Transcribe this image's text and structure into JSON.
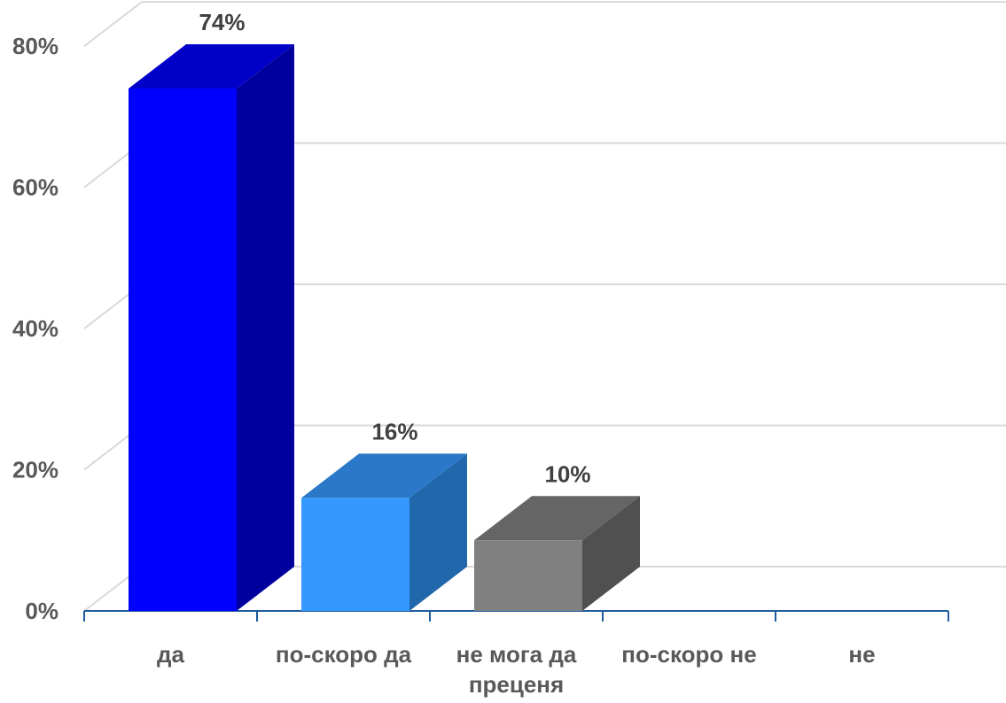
{
  "chart_data": {
    "type": "bar",
    "style": "3d-column",
    "categories": [
      [
        "да"
      ],
      [
        "по-скоро да"
      ],
      [
        "не мога да",
        "преценя"
      ],
      [
        "по-скоро не"
      ],
      [
        "не"
      ]
    ],
    "values": [
      74,
      16,
      10,
      0,
      0
    ],
    "data_labels": [
      "74%",
      "16%",
      "10%",
      "",
      ""
    ],
    "ylim": [
      0,
      80
    ],
    "yticks": [
      0,
      20,
      40,
      60,
      80
    ],
    "ytick_labels": [
      "0%",
      "20%",
      "40%",
      "60%",
      "80%"
    ],
    "grid": true,
    "legend": "none",
    "title": "",
    "xlabel": "",
    "ylabel": "",
    "colors": {
      "bars": [
        {
          "front": "#0000FF",
          "side": "#00009E",
          "top": "#0000C8"
        },
        {
          "front": "#3399FF",
          "side": "#2167AB",
          "top": "#2B78C8"
        },
        {
          "front": "#808080",
          "side": "#505050",
          "top": "#656565"
        }
      ],
      "axis": "#1F5B9C",
      "grid": "#D9D9D9"
    }
  }
}
